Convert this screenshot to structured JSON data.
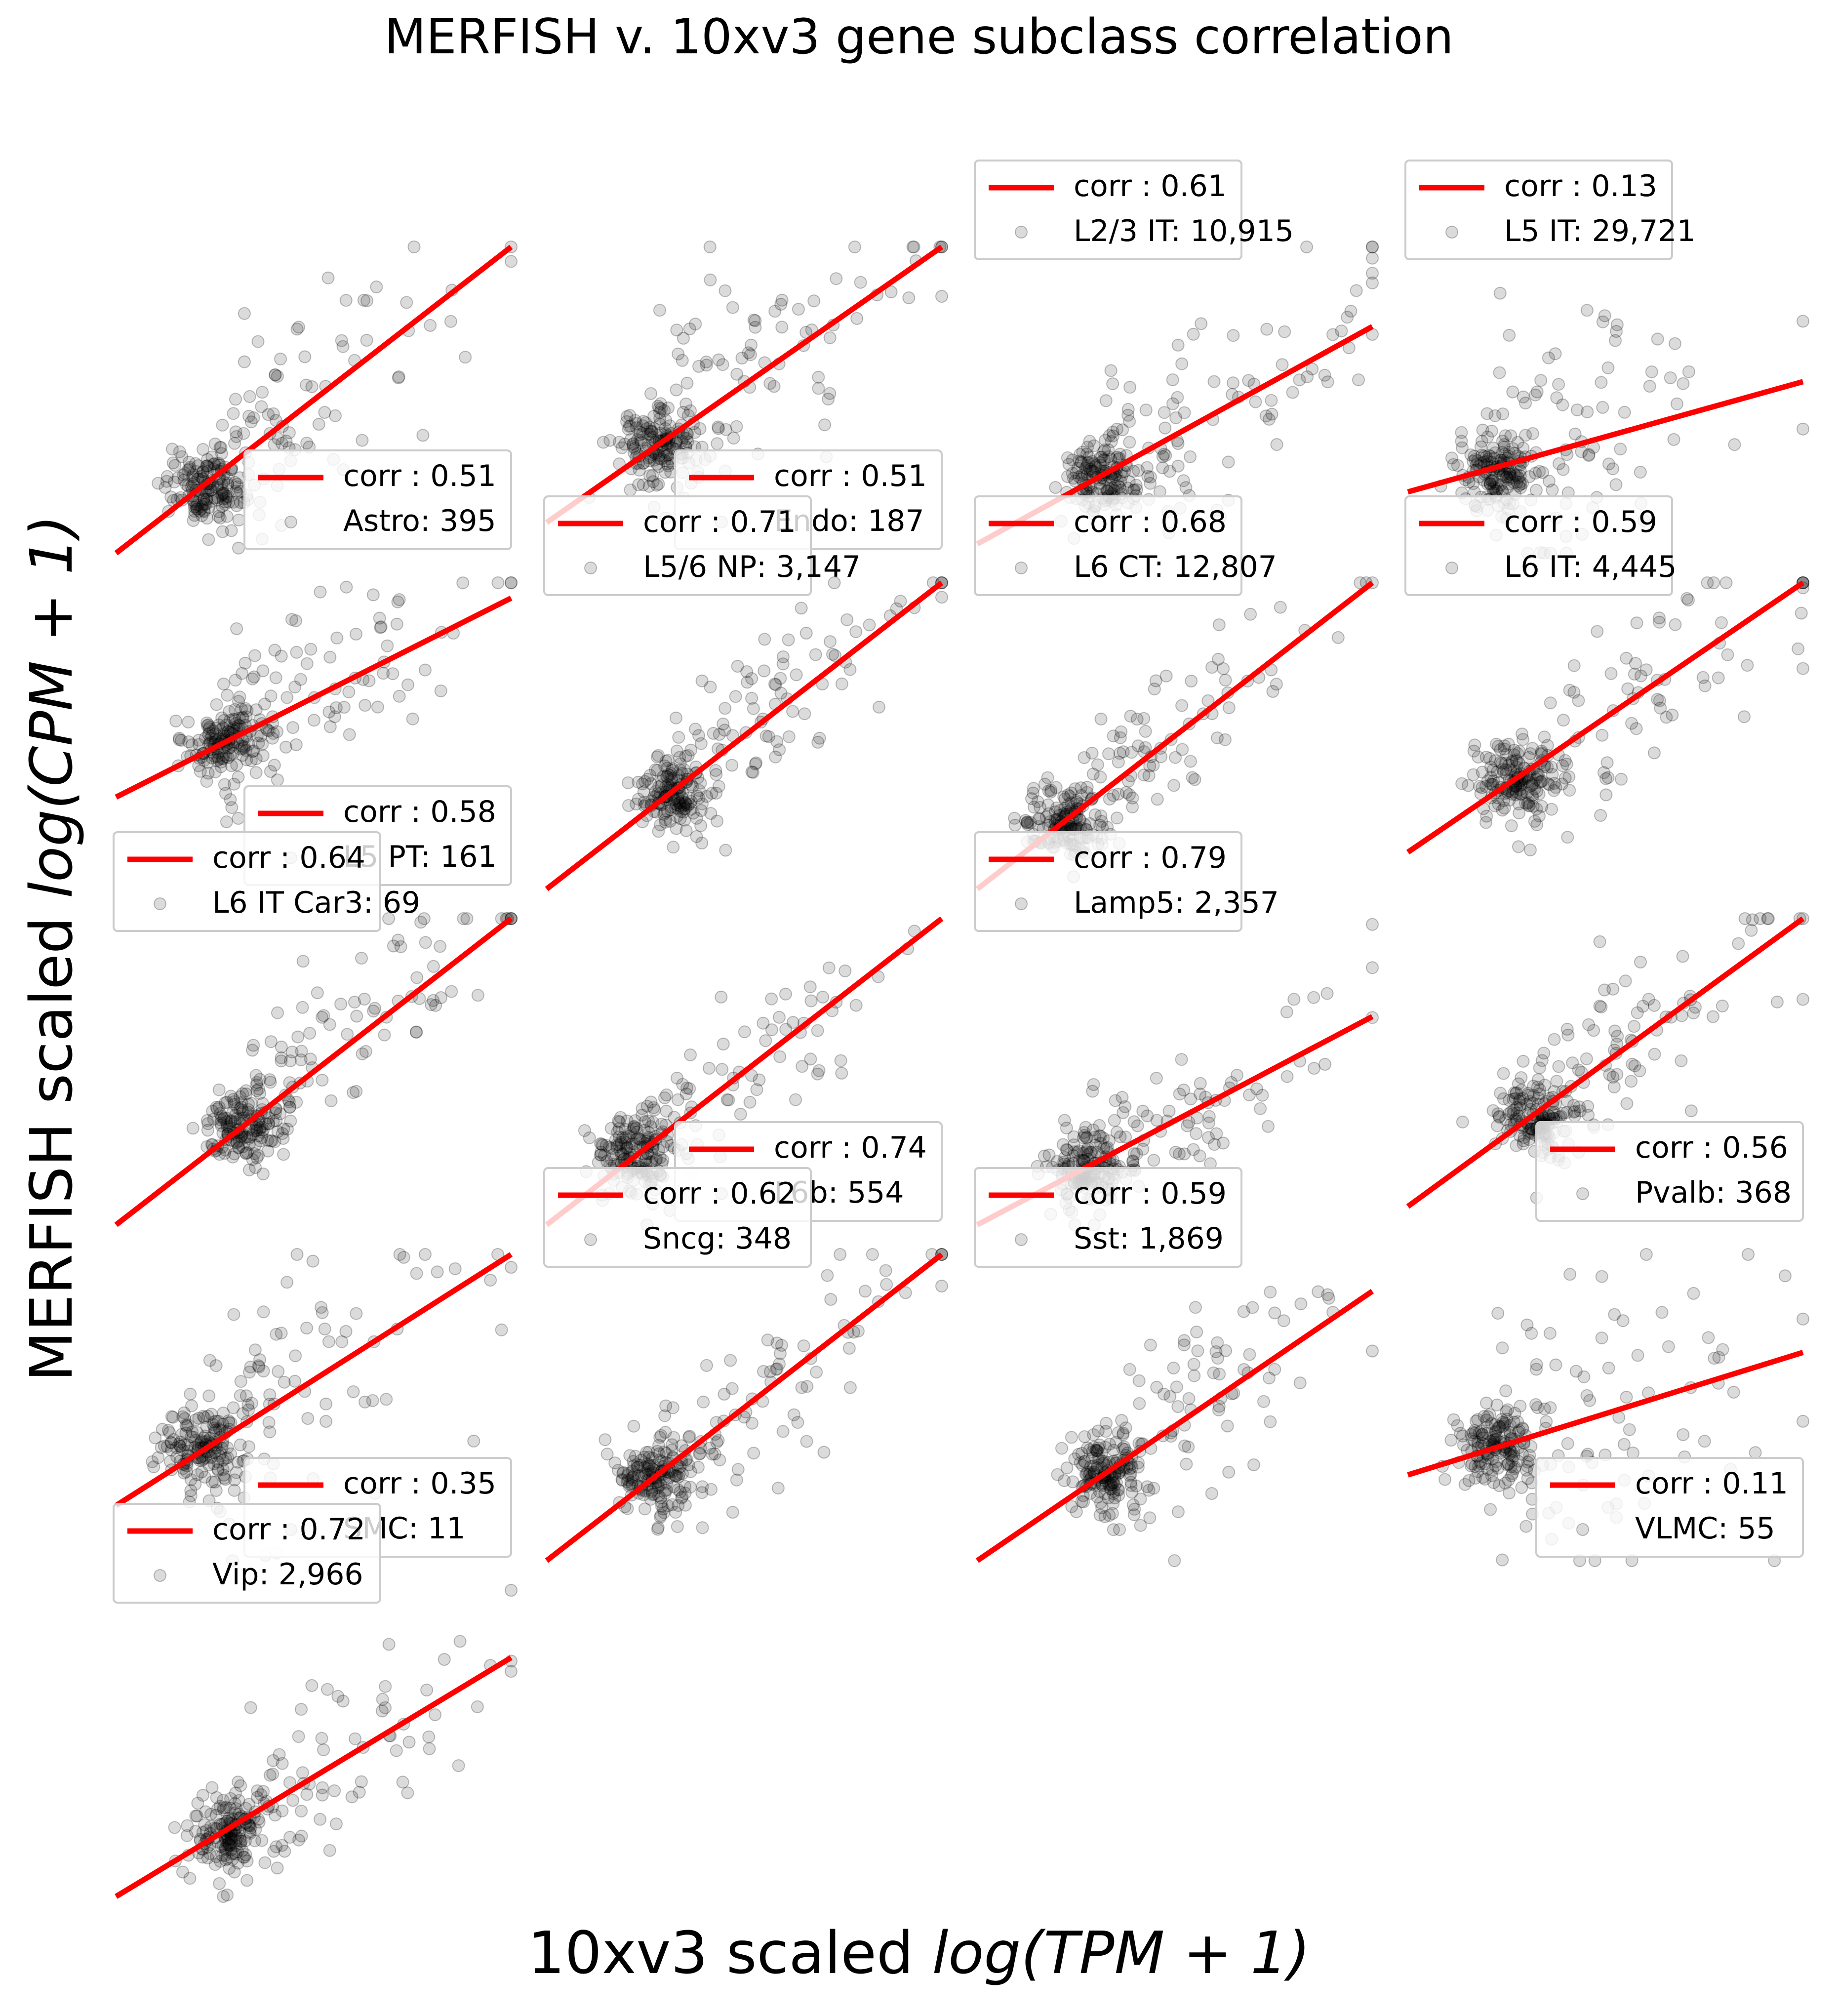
{
  "figure": {
    "title": "MERFISH v. 10xv3 gene subclass correlation",
    "xlabel_prefix": "10xv3 scaled ",
    "xlabel_math": "log(TPM + 1)",
    "ylabel_prefix": "MERFISH scaled ",
    "ylabel_math": "log(CPM + 1)",
    "colors": {
      "fit_line": "#ff0000",
      "points": "#000000",
      "legend_border": "#cccccc"
    }
  },
  "chart_data": {
    "type": "scatter",
    "layout": "small multiples, 5 rows x 4 columns, shared scaled axes, no ticks",
    "panels": [
      {
        "name": "Astro",
        "n": "395",
        "corr": "0.51",
        "legend": "lower-right",
        "fit": [
          0.0,
          0.0,
          1.0,
          1.0
        ]
      },
      {
        "name": "Endo",
        "n": "187",
        "corr": "0.51",
        "legend": "lower-right",
        "fit": [
          0.0,
          0.1,
          1.0,
          1.0
        ]
      },
      {
        "name": "L2/3 IT",
        "n": "10,915",
        "corr": "0.61",
        "legend": "upper-left",
        "fit": [
          0.0,
          0.03,
          1.0,
          0.74
        ]
      },
      {
        "name": "L5 IT",
        "n": "29,721",
        "corr": "0.13",
        "legend": "upper-left",
        "fit": [
          0.0,
          0.2,
          1.0,
          0.56
        ]
      },
      {
        "name": "L5 PT",
        "n": "161",
        "corr": "0.58",
        "legend": "lower-right",
        "fit": [
          0.0,
          0.3,
          1.0,
          0.95
        ]
      },
      {
        "name": "L5/6 NP",
        "n": "3,147",
        "corr": "0.71",
        "legend": "upper-left",
        "fit": [
          0.0,
          0.0,
          1.0,
          1.0
        ]
      },
      {
        "name": "L6 CT",
        "n": "12,807",
        "corr": "0.68",
        "legend": "upper-left",
        "fit": [
          0.0,
          0.0,
          1.0,
          1.0
        ]
      },
      {
        "name": "L6 IT",
        "n": "4,445",
        "corr": "0.59",
        "legend": "upper-left",
        "fit": [
          0.0,
          0.12,
          1.0,
          1.0
        ]
      },
      {
        "name": "L6 IT Car3",
        "n": "69",
        "corr": "0.64",
        "legend": "upper-left",
        "fit": [
          0.0,
          0.0,
          1.0,
          1.0
        ]
      },
      {
        "name": "L6b",
        "n": "554",
        "corr": "0.74",
        "legend": "lower-right",
        "fit": [
          0.0,
          0.0,
          1.0,
          1.0
        ]
      },
      {
        "name": "Lamp5",
        "n": "2,357",
        "corr": "0.79",
        "legend": "upper-left",
        "fit": [
          0.0,
          0.0,
          1.0,
          0.68
        ]
      },
      {
        "name": "Pvalb",
        "n": "368",
        "corr": "0.56",
        "legend": "lower-right",
        "fit": [
          0.0,
          0.06,
          1.0,
          1.0
        ]
      },
      {
        "name": "SMC",
        "n": "11",
        "corr": "0.35",
        "legend": "lower-right",
        "fit": [
          0.0,
          0.18,
          1.0,
          1.0
        ]
      },
      {
        "name": "Sncg",
        "n": "348",
        "corr": "0.62",
        "legend": "upper-left",
        "fit": [
          0.0,
          0.0,
          1.0,
          1.0
        ]
      },
      {
        "name": "Sst",
        "n": "1,869",
        "corr": "0.59",
        "legend": "upper-left",
        "fit": [
          0.0,
          0.0,
          1.0,
          0.88
        ]
      },
      {
        "name": "VLMC",
        "n": "55",
        "corr": "0.11",
        "legend": "lower-right",
        "fit": [
          0.0,
          0.28,
          1.0,
          0.68
        ]
      },
      {
        "name": "Vip",
        "n": "2,966",
        "corr": "0.72",
        "legend": "upper-left",
        "fit": [
          0.0,
          0.0,
          1.0,
          0.78
        ]
      }
    ]
  }
}
